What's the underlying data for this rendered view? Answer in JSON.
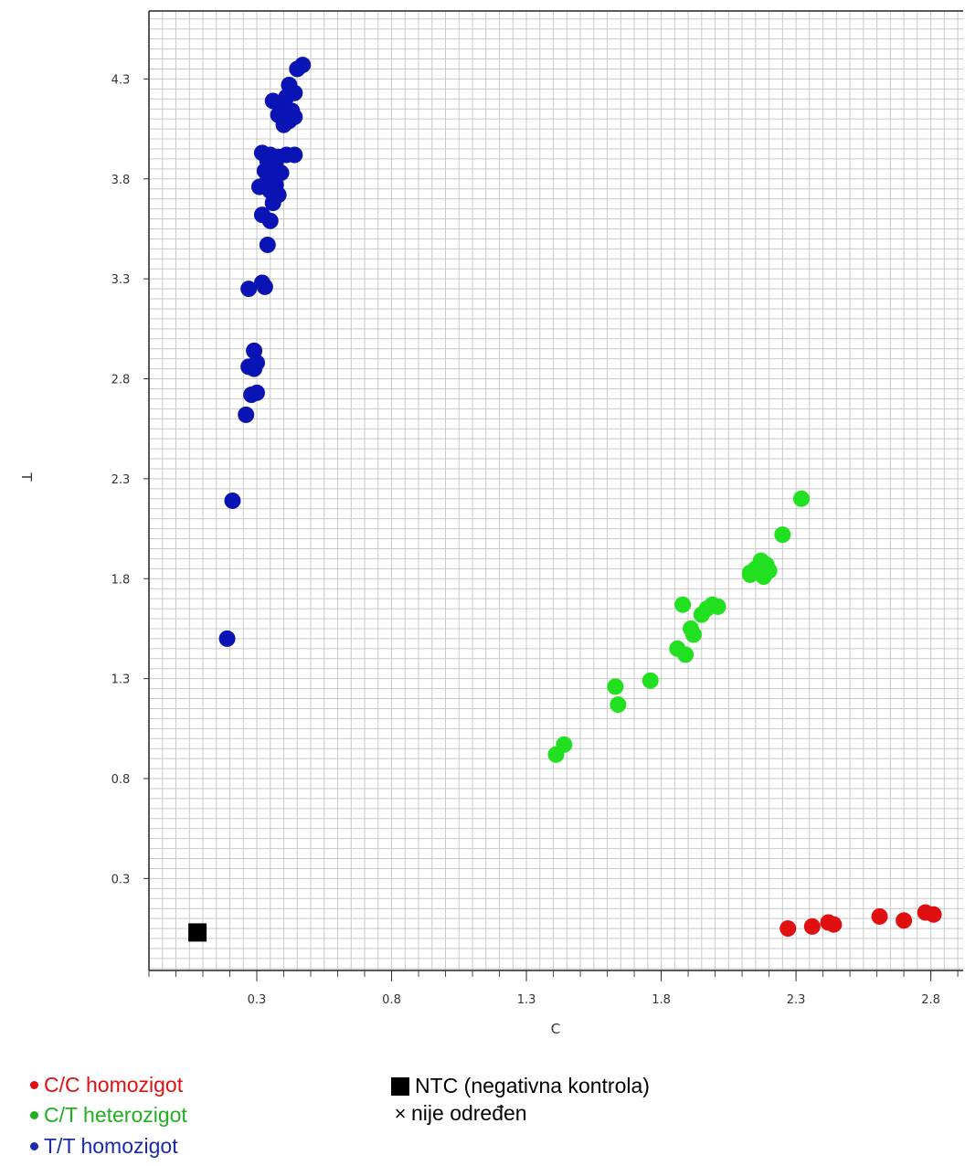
{
  "chart_data": {
    "type": "scatter",
    "xlabel": "C",
    "ylabel": "T",
    "xlim": [
      -0.1,
      2.92
    ],
    "ylim": [
      -0.16,
      4.64
    ],
    "xticks": [
      "0.3",
      "0.8",
      "1.3",
      "1.8",
      "2.3",
      "2.8"
    ],
    "yticks": [
      "0.3",
      "0.8",
      "1.3",
      "1.8",
      "2.3",
      "2.8",
      "3.3",
      "3.8",
      "4.3"
    ],
    "grid": true,
    "legend_position": "bottom",
    "series": [
      {
        "name": "T/T homozigot",
        "color": "#0a14b4",
        "marker": "circle",
        "points": [
          [
            0.47,
            4.37
          ],
          [
            0.45,
            4.35
          ],
          [
            0.42,
            4.27
          ],
          [
            0.44,
            4.23
          ],
          [
            0.41,
            4.21
          ],
          [
            0.36,
            4.19
          ],
          [
            0.4,
            4.17
          ],
          [
            0.43,
            4.14
          ],
          [
            0.38,
            4.12
          ],
          [
            0.42,
            4.09
          ],
          [
            0.4,
            4.07
          ],
          [
            0.44,
            4.11
          ],
          [
            0.32,
            3.93
          ],
          [
            0.35,
            3.92
          ],
          [
            0.38,
            3.91
          ],
          [
            0.41,
            3.92
          ],
          [
            0.44,
            3.92
          ],
          [
            0.34,
            3.89
          ],
          [
            0.37,
            3.86
          ],
          [
            0.33,
            3.84
          ],
          [
            0.36,
            3.82
          ],
          [
            0.39,
            3.83
          ],
          [
            0.34,
            3.79
          ],
          [
            0.37,
            3.77
          ],
          [
            0.31,
            3.76
          ],
          [
            0.35,
            3.74
          ],
          [
            0.38,
            3.72
          ],
          [
            0.36,
            3.68
          ],
          [
            0.32,
            3.62
          ],
          [
            0.35,
            3.59
          ],
          [
            0.34,
            3.47
          ],
          [
            0.32,
            3.28
          ],
          [
            0.33,
            3.26
          ],
          [
            0.27,
            3.25
          ],
          [
            0.29,
            2.94
          ],
          [
            0.3,
            2.88
          ],
          [
            0.27,
            2.86
          ],
          [
            0.29,
            2.85
          ],
          [
            0.3,
            2.73
          ],
          [
            0.28,
            2.72
          ],
          [
            0.26,
            2.62
          ],
          [
            0.21,
            2.19
          ],
          [
            0.19,
            1.5
          ]
        ]
      },
      {
        "name": "C/T heterozigot",
        "color": "#20e020",
        "marker": "circle",
        "points": [
          [
            2.32,
            2.2
          ],
          [
            2.25,
            2.02
          ],
          [
            2.19,
            1.87
          ],
          [
            2.17,
            1.89
          ],
          [
            2.13,
            1.83
          ],
          [
            2.15,
            1.85
          ],
          [
            2.2,
            1.84
          ],
          [
            2.18,
            1.81
          ],
          [
            2.13,
            1.82
          ],
          [
            1.99,
            1.67
          ],
          [
            2.01,
            1.66
          ],
          [
            1.97,
            1.65
          ],
          [
            1.95,
            1.62
          ],
          [
            1.88,
            1.67
          ],
          [
            1.91,
            1.55
          ],
          [
            1.92,
            1.52
          ],
          [
            1.86,
            1.45
          ],
          [
            1.89,
            1.42
          ],
          [
            1.76,
            1.29
          ],
          [
            1.63,
            1.26
          ],
          [
            1.64,
            1.17
          ],
          [
            1.44,
            0.97
          ],
          [
            1.41,
            0.92
          ]
        ]
      },
      {
        "name": "C/C homozigot",
        "color": "#e01010",
        "marker": "circle",
        "points": [
          [
            2.27,
            0.05
          ],
          [
            2.36,
            0.06
          ],
          [
            2.42,
            0.08
          ],
          [
            2.44,
            0.07
          ],
          [
            2.61,
            0.11
          ],
          [
            2.7,
            0.09
          ],
          [
            2.78,
            0.13
          ],
          [
            2.81,
            0.12
          ]
        ]
      },
      {
        "name": "NTC (negativna kontrola)",
        "color": "#000000",
        "marker": "square",
        "points": [
          [
            0.08,
            0.03
          ]
        ]
      }
    ]
  },
  "legend": {
    "items": [
      {
        "label": "C/C homozigot",
        "color": "#e01010",
        "symbol": "dot"
      },
      {
        "label": "C/T heterozigot",
        "color": "#20b020",
        "symbol": "dot"
      },
      {
        "label": "T/T homozigot",
        "color": "#1a2aa8",
        "symbol": "dot"
      },
      {
        "label": "NTC (negativna kontrola)",
        "color": "#000000",
        "symbol": "square"
      },
      {
        "label": "nije određen",
        "color": "#000000",
        "symbol": "cross"
      }
    ]
  }
}
